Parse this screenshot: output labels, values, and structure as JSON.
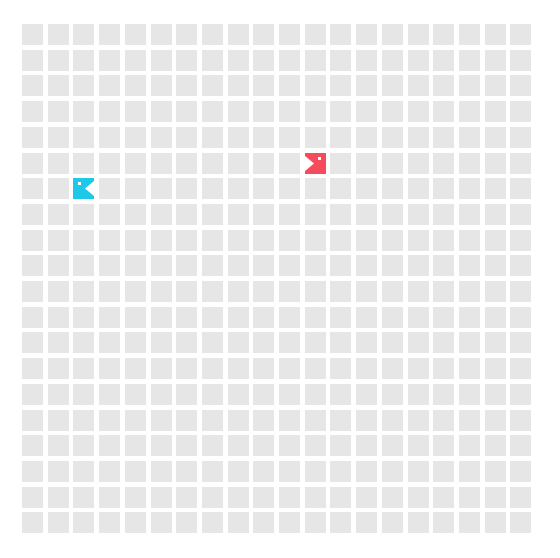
{
  "board": {
    "cols": 20,
    "rows": 20,
    "cell_color": "#e6e6e6",
    "background_color": "#ffffff"
  },
  "players": [
    {
      "id": "cyan-player",
      "color": "#1ec8e8",
      "icon": "pacman-icon",
      "facing": "left",
      "col": 2,
      "row": 6
    },
    {
      "id": "red-player",
      "color": "#f64b5c",
      "icon": "pacman-icon",
      "facing": "right",
      "col": 11,
      "row": 5
    }
  ]
}
